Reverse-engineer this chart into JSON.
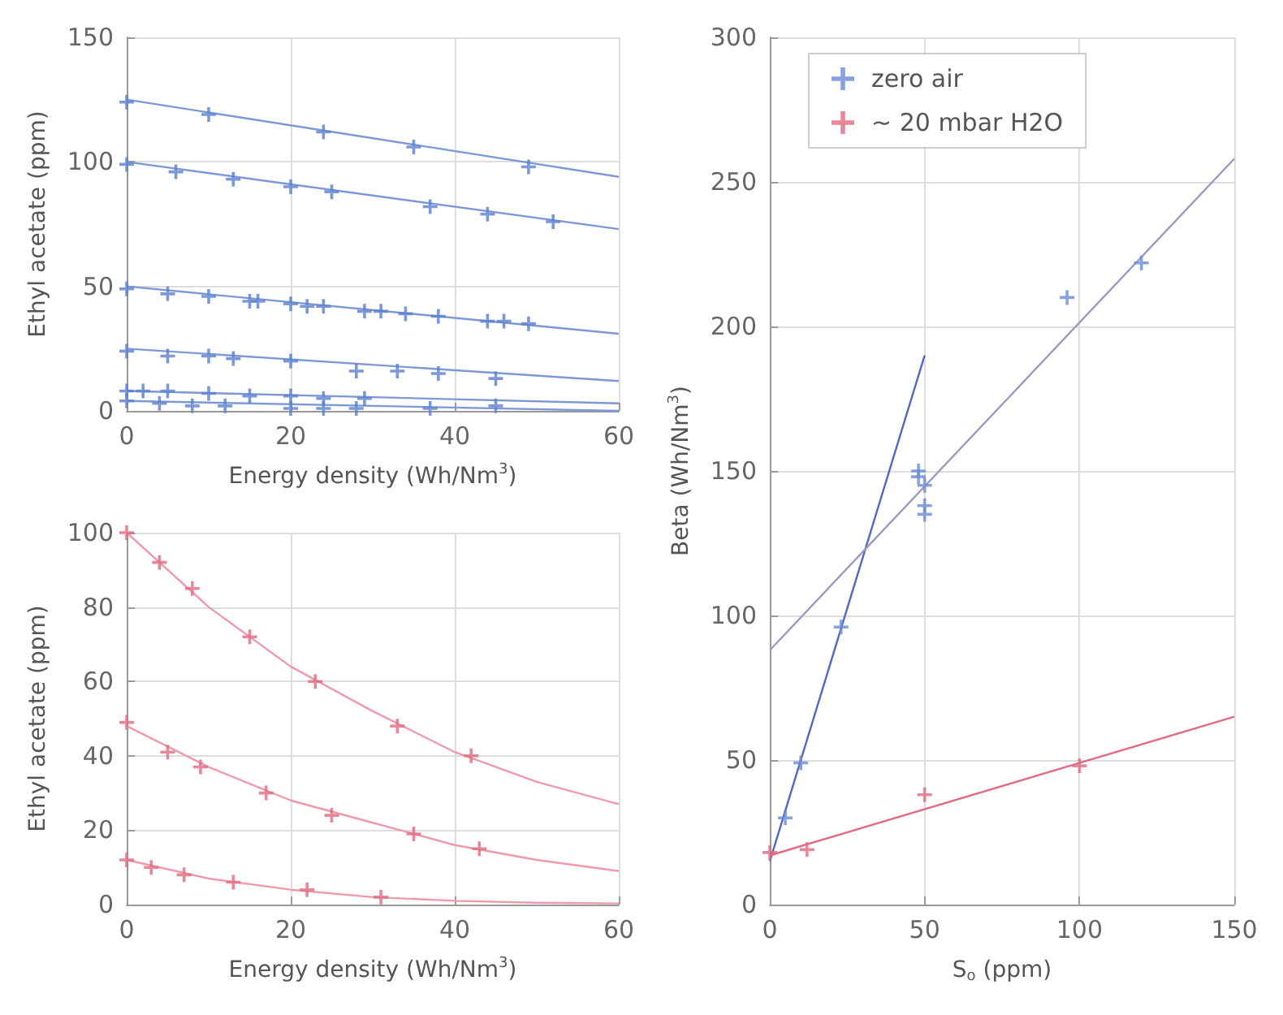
{
  "chart_data": [
    {
      "type": "scatter",
      "xlabel": "Energy density (Wh/Nm$^{3}$)",
      "ylabel": "Ethyl acetate (ppm)",
      "xlim": [
        0,
        60
      ],
      "xticks": [
        0,
        20,
        40,
        60
      ],
      "ylim": [
        0,
        150
      ],
      "yticks": [
        0,
        50,
        100,
        150
      ],
      "grid": true,
      "marker": "cross",
      "series": [
        {
          "color": "#5a7fd0",
          "x": [
            0,
            10,
            24,
            35,
            49
          ],
          "values": [
            124,
            119,
            112,
            106,
            98
          ]
        },
        {
          "color": "#5a7fd0",
          "x": [
            0,
            6,
            13,
            20,
            25,
            37,
            44,
            52
          ],
          "values": [
            99,
            96,
            93,
            90,
            88,
            82,
            79,
            76
          ]
        },
        {
          "color": "#5a7fd0",
          "x": [
            0,
            5,
            10,
            15,
            16,
            20,
            22,
            24,
            29,
            31,
            34,
            38,
            44,
            46,
            49
          ],
          "values": [
            49,
            47,
            46,
            44,
            44,
            43,
            42,
            42,
            40,
            40,
            39,
            38,
            36,
            36,
            35
          ]
        },
        {
          "color": "#5a7fd0",
          "x": [
            0,
            5,
            10,
            13,
            20,
            28,
            33,
            38,
            45
          ],
          "values": [
            24,
            22,
            22,
            21,
            20,
            16,
            16,
            15,
            13
          ]
        },
        {
          "color": "#5a7fd0",
          "x": [
            0,
            2,
            5,
            10,
            15,
            20,
            24,
            29
          ],
          "values": [
            8,
            8,
            8,
            7,
            6,
            6,
            5,
            5
          ]
        },
        {
          "color": "#5a7fd0",
          "x": [
            0,
            4,
            8,
            12,
            20,
            24,
            28,
            37,
            45
          ],
          "values": [
            4,
            3,
            2,
            2,
            1,
            1,
            1,
            1,
            2
          ]
        },
        {
          "type": "line",
          "marker": "none",
          "color": "#7d98d8",
          "x": [
            0,
            60
          ],
          "values": [
            125,
            94
          ]
        },
        {
          "type": "line",
          "marker": "none",
          "color": "#7d98d8",
          "x": [
            0,
            60
          ],
          "values": [
            100,
            73
          ]
        },
        {
          "type": "line",
          "marker": "none",
          "color": "#7d98d8",
          "x": [
            0,
            60
          ],
          "values": [
            50,
            31
          ]
        },
        {
          "type": "line",
          "marker": "none",
          "color": "#7d98d8",
          "x": [
            0,
            60
          ],
          "values": [
            25,
            12
          ]
        },
        {
          "type": "line",
          "marker": "none",
          "color": "#7d98d8",
          "x": [
            0,
            60
          ],
          "values": [
            8,
            3
          ]
        },
        {
          "type": "line",
          "marker": "none",
          "color": "#7d98d8",
          "x": [
            0,
            60
          ],
          "values": [
            4,
            0
          ]
        }
      ]
    },
    {
      "type": "scatter",
      "xlabel": "Energy density (Wh/Nm$^{3}$)",
      "ylabel": "Ethyl acetate (ppm)",
      "xlim": [
        0,
        60
      ],
      "xticks": [
        0,
        20,
        40,
        60
      ],
      "ylim": [
        0,
        100
      ],
      "yticks": [
        0,
        20,
        40,
        60,
        80,
        100
      ],
      "grid": true,
      "marker": "cross",
      "series": [
        {
          "color": "#e06a80",
          "x": [
            0,
            4,
            8,
            15,
            23,
            33,
            42
          ],
          "values": [
            100,
            92,
            85,
            72,
            60,
            48,
            40
          ]
        },
        {
          "color": "#e06a80",
          "x": [
            0,
            5,
            9,
            17,
            25,
            35,
            43
          ],
          "values": [
            49,
            41,
            37,
            30,
            24,
            19,
            15
          ]
        },
        {
          "color": "#e06a80",
          "x": [
            0,
            3,
            7,
            13,
            22,
            31
          ],
          "values": [
            12,
            10,
            8,
            6,
            4,
            2
          ]
        },
        {
          "type": "line",
          "marker": "none",
          "color": "#ee9aaa",
          "x": [
            0,
            10,
            20,
            30,
            40,
            50,
            60
          ],
          "values": [
            100,
            80,
            64,
            52,
            41,
            33,
            27
          ]
        },
        {
          "type": "line",
          "marker": "none",
          "color": "#ee9aaa",
          "x": [
            0,
            10,
            20,
            30,
            40,
            50,
            60
          ],
          "values": [
            48,
            37,
            28,
            22,
            16,
            12,
            9
          ]
        },
        {
          "type": "line",
          "marker": "none",
          "color": "#ee9aaa",
          "x": [
            0,
            10,
            20,
            30,
            40,
            50,
            60
          ],
          "values": [
            12,
            7,
            4,
            2,
            1,
            0.5,
            0.3
          ]
        }
      ]
    },
    {
      "type": "scatter",
      "xlabel": "S$_{o}$ (ppm)",
      "ylabel": "Beta (Wh/Nm$^{3}$)",
      "xlim": [
        0,
        150
      ],
      "xticks": [
        0,
        50,
        100,
        150
      ],
      "ylim": [
        0,
        300
      ],
      "yticks": [
        0,
        50,
        100,
        150,
        200,
        250,
        300
      ],
      "grid": true,
      "marker": "cross",
      "legend": "top left",
      "series": [
        {
          "name": "zero air",
          "color": "#6a8ad8",
          "x": [
            5,
            10,
            23,
            48,
            48,
            50,
            50,
            50,
            96,
            120
          ],
          "values": [
            30,
            49,
            96,
            150,
            148,
            145,
            138,
            135,
            210,
            222
          ]
        },
        {
          "name": "~ 20 mbar H2O",
          "color": "#e06a80",
          "x": [
            0,
            12,
            50,
            100
          ],
          "values": [
            18,
            19,
            38,
            48
          ]
        },
        {
          "type": "line",
          "marker": "none",
          "color": "#5566c8",
          "x": [
            0,
            50
          ],
          "values": [
            15,
            190
          ]
        },
        {
          "type": "line",
          "marker": "none",
          "color": "#9a9ac0",
          "x": [
            0,
            150
          ],
          "values": [
            88,
            258
          ]
        },
        {
          "type": "line",
          "marker": "none",
          "color": "#e06a80",
          "x": [
            0,
            150
          ],
          "values": [
            17,
            65
          ]
        }
      ]
    }
  ]
}
